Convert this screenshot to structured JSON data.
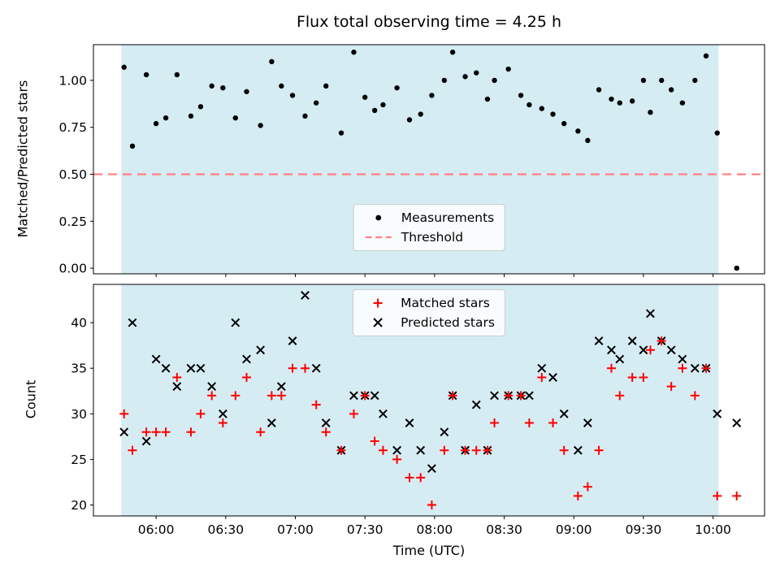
{
  "figure": {
    "title": "Flux total observing time = 4.25 h",
    "xlabel": "Time (UTC)",
    "top_ylabel": "Matched/Predicted stars",
    "bottom_ylabel": "Count"
  },
  "legend_top": {
    "measurements": "Measurements",
    "threshold": "Threshold"
  },
  "legend_bottom": {
    "matched": "Matched stars",
    "predicted": "Predicted stars"
  },
  "colors": {
    "shade": "#d6ecf3",
    "threshold": "#ff8080",
    "points": "#000000",
    "matched": "#ff0000",
    "predicted": "#000000"
  },
  "chart_data": [
    {
      "type": "scatter",
      "title": "Flux total observing time = 4.25 h",
      "ylabel": "Matched/Predicted stars",
      "xlim": [
        5.55,
        10.37
      ],
      "ylim": [
        -0.03,
        1.19
      ],
      "yticks": [
        0.0,
        0.25,
        0.5,
        0.75,
        1.0
      ],
      "ytick_labels": [
        "0.00",
        "0.25",
        "0.50",
        "0.75",
        "1.00"
      ],
      "xticks": [
        6.0,
        6.5,
        7.0,
        7.5,
        8.0,
        8.5,
        9.0,
        9.5,
        10.0
      ],
      "xtick_labels": [
        "06:00",
        "06:30",
        "07:00",
        "07:30",
        "08:00",
        "08:30",
        "09:00",
        "09:30",
        "10:00"
      ],
      "show_xtick_labels": false,
      "grid": false,
      "shaded_span": [
        5.75,
        10.04
      ],
      "threshold": 0.5,
      "legend": [
        "Measurements",
        "Threshold"
      ],
      "legend_position": "lower center",
      "x": [
        5.77,
        5.83,
        5.93,
        6.0,
        6.07,
        6.15,
        6.25,
        6.32,
        6.4,
        6.48,
        6.57,
        6.65,
        6.75,
        6.83,
        6.9,
        6.98,
        7.07,
        7.15,
        7.22,
        7.33,
        7.42,
        7.5,
        7.57,
        7.63,
        7.73,
        7.82,
        7.9,
        7.98,
        8.07,
        8.13,
        8.22,
        8.3,
        8.38,
        8.43,
        8.53,
        8.62,
        8.68,
        8.77,
        8.85,
        8.93,
        9.03,
        9.1,
        9.18,
        9.27,
        9.33,
        9.42,
        9.5,
        9.55,
        9.63,
        9.7,
        9.78,
        9.87,
        9.95,
        10.03,
        10.17
      ],
      "points": [
        1.07,
        0.65,
        1.03,
        0.77,
        0.8,
        1.03,
        0.81,
        0.86,
        0.97,
        0.96,
        0.8,
        0.94,
        0.76,
        1.1,
        0.97,
        0.92,
        0.81,
        0.88,
        0.97,
        0.72,
        1.15,
        0.91,
        0.84,
        0.87,
        0.96,
        0.79,
        0.82,
        0.92,
        1.0,
        1.15,
        1.02,
        1.04,
        0.9,
        1.0,
        1.06,
        0.92,
        0.87,
        0.85,
        0.82,
        0.77,
        0.73,
        0.68,
        0.95,
        0.9,
        0.88,
        0.89,
        1.0,
        0.83,
        1.0,
        0.95,
        0.88,
        1.0,
        1.13,
        0.72,
        0.0
      ]
    },
    {
      "type": "scatter",
      "ylabel": "Count",
      "xlabel": "Time (UTC)",
      "xlim": [
        5.55,
        10.37
      ],
      "ylim": [
        18.8,
        44.2
      ],
      "yticks": [
        20,
        25,
        30,
        35,
        40
      ],
      "ytick_labels": [
        "20",
        "25",
        "30",
        "35",
        "40"
      ],
      "xticks": [
        6.0,
        6.5,
        7.0,
        7.5,
        8.0,
        8.5,
        9.0,
        9.5,
        10.0
      ],
      "xtick_labels": [
        "06:00",
        "06:30",
        "07:00",
        "07:30",
        "08:00",
        "08:30",
        "09:00",
        "09:30",
        "10:00"
      ],
      "show_xtick_labels": true,
      "grid": false,
      "shaded_span": [
        5.75,
        10.04
      ],
      "legend": [
        "Matched stars",
        "Predicted stars"
      ],
      "legend_position": "upper center",
      "x": [
        5.77,
        5.83,
        5.93,
        6.0,
        6.07,
        6.15,
        6.25,
        6.32,
        6.4,
        6.48,
        6.57,
        6.65,
        6.75,
        6.83,
        6.9,
        6.98,
        7.07,
        7.15,
        7.22,
        7.33,
        7.42,
        7.5,
        7.57,
        7.63,
        7.73,
        7.82,
        7.9,
        7.98,
        8.07,
        8.13,
        8.22,
        8.3,
        8.38,
        8.43,
        8.53,
        8.62,
        8.68,
        8.77,
        8.85,
        8.93,
        9.03,
        9.1,
        9.18,
        9.27,
        9.33,
        9.42,
        9.5,
        9.55,
        9.63,
        9.7,
        9.78,
        9.87,
        9.95,
        10.03,
        10.17
      ],
      "series": [
        {
          "name": "Predicted stars",
          "marker": "x",
          "color": "#000000",
          "values": [
            28,
            40,
            27,
            36,
            35,
            33,
            35,
            35,
            33,
            30,
            40,
            36,
            37,
            29,
            33,
            38,
            43,
            35,
            29,
            26,
            32,
            32,
            32,
            30,
            26,
            29,
            26,
            24,
            28,
            32,
            26,
            31,
            26,
            32,
            32,
            32,
            32,
            35,
            34,
            30,
            26,
            29,
            38,
            37,
            36,
            38,
            37,
            41,
            38,
            37,
            36,
            35,
            35,
            30,
            29
          ]
        },
        {
          "name": "Matched stars",
          "marker": "+",
          "color": "#ff0000",
          "values": [
            30,
            26,
            28,
            28,
            28,
            34,
            28,
            30,
            32,
            29,
            32,
            34,
            28,
            32,
            32,
            35,
            35,
            31,
            28,
            26,
            30,
            32,
            27,
            26,
            25,
            23,
            23,
            20,
            26,
            32,
            26,
            26,
            26,
            29,
            32,
            32,
            29,
            34,
            29,
            26,
            21,
            22,
            26,
            35,
            32,
            34,
            34,
            37,
            38,
            33,
            35,
            32,
            35,
            21,
            21
          ]
        }
      ]
    }
  ]
}
